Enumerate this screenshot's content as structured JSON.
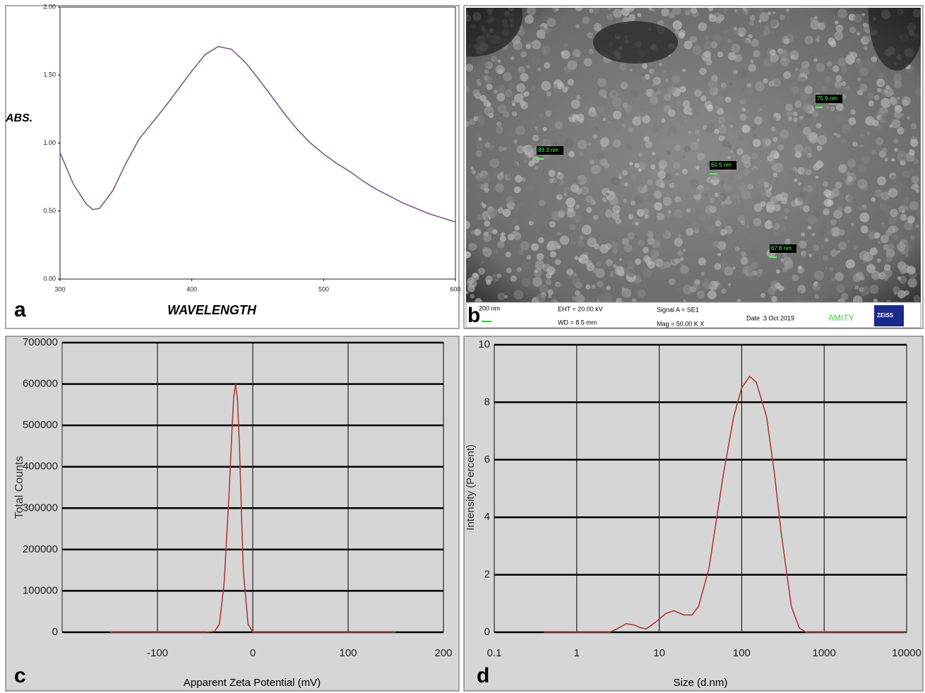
{
  "chart_data": [
    {
      "type": "line",
      "label": "a",
      "xlabel": "WAVELENGTH",
      "ylabel": "ABS.",
      "color": "#7b5a8a",
      "grid": false,
      "xscale": "linear",
      "x": [
        300,
        310,
        320,
        325,
        330,
        340,
        350,
        360,
        370,
        380,
        390,
        400,
        410,
        420,
        430,
        440,
        450,
        460,
        470,
        480,
        490,
        500,
        510,
        520,
        530,
        540,
        550,
        560,
        570,
        580,
        590,
        600
      ],
      "values": [
        0.93,
        0.7,
        0.55,
        0.51,
        0.52,
        0.65,
        0.85,
        1.03,
        1.15,
        1.27,
        1.4,
        1.53,
        1.65,
        1.71,
        1.69,
        1.6,
        1.48,
        1.35,
        1.22,
        1.1,
        1.0,
        0.92,
        0.85,
        0.79,
        0.72,
        0.66,
        0.61,
        0.56,
        0.52,
        0.48,
        0.45,
        0.42
      ],
      "xlim": [
        300,
        600
      ],
      "xticks": [
        300,
        400,
        500,
        600
      ],
      "ylim": [
        0,
        2
      ],
      "yticks": [
        {
          "value": 0,
          "label": "0.00"
        },
        {
          "value": 0.5,
          "label": "0.50"
        },
        {
          "value": 1,
          "label": "1.00"
        },
        {
          "value": 1.5,
          "label": "1.50"
        },
        {
          "value": 2,
          "label": "2.00"
        }
      ]
    },
    {
      "type": "image",
      "label": "b",
      "annotations": [
        "75.9 nm",
        "89.3 nm",
        "60.5 nm",
        "67.8 nm"
      ],
      "info": [
        "200 nm",
        "EHT = 20.00 kV",
        "WD = 8.5 mm",
        "Signal A = SE1",
        "Mag = 50.00 K X",
        "Date :3 Oct 2019",
        "AMITY",
        "ZEISS"
      ]
    },
    {
      "type": "line",
      "label": "c",
      "xlabel": "Apparent Zeta Potential (mV)",
      "ylabel": "Total Counts",
      "color": "#b03a2e",
      "grid": true,
      "xscale": "linear",
      "x": [
        -150,
        -50,
        -40,
        -35,
        -30,
        -25,
        -22,
        -20,
        -18,
        -16,
        -14,
        -12,
        -10,
        -5,
        0,
        5,
        150
      ],
      "values": [
        0,
        0,
        2000,
        20000,
        120000,
        330000,
        480000,
        570000,
        600000,
        560000,
        450000,
        300000,
        150000,
        20000,
        0,
        0,
        0
      ],
      "xlim": [
        -200,
        200
      ],
      "xticks": [
        -100,
        0,
        100,
        200
      ],
      "ylim": [
        0,
        700000
      ],
      "yticks": [
        0,
        100000,
        200000,
        300000,
        400000,
        500000,
        600000,
        700000
      ]
    },
    {
      "type": "line",
      "label": "d",
      "xlabel": "Size (d.nm)",
      "ylabel": "Intensity (Percent)",
      "color": "#b03a2e",
      "grid": true,
      "xscale": "log",
      "x": [
        0.4,
        2.5,
        3,
        4,
        5,
        6,
        7,
        9,
        12,
        15,
        20,
        25,
        30,
        40,
        50,
        60,
        80,
        100,
        125,
        150,
        200,
        250,
        300,
        400,
        500,
        600,
        10000
      ],
      "values": [
        0,
        0,
        0.1,
        0.3,
        0.25,
        0.15,
        0.12,
        0.35,
        0.65,
        0.75,
        0.6,
        0.6,
        0.9,
        2.2,
        4,
        5.5,
        7.5,
        8.5,
        8.9,
        8.7,
        7.5,
        5.5,
        3.5,
        0.9,
        0.15,
        0,
        0
      ],
      "xlim": [
        0.1,
        10000
      ],
      "xticks": [
        0.1,
        1,
        10,
        100,
        1000,
        10000
      ],
      "ylim": [
        0,
        10
      ],
      "yticks": [
        0,
        2,
        4,
        6,
        8,
        10
      ]
    }
  ]
}
